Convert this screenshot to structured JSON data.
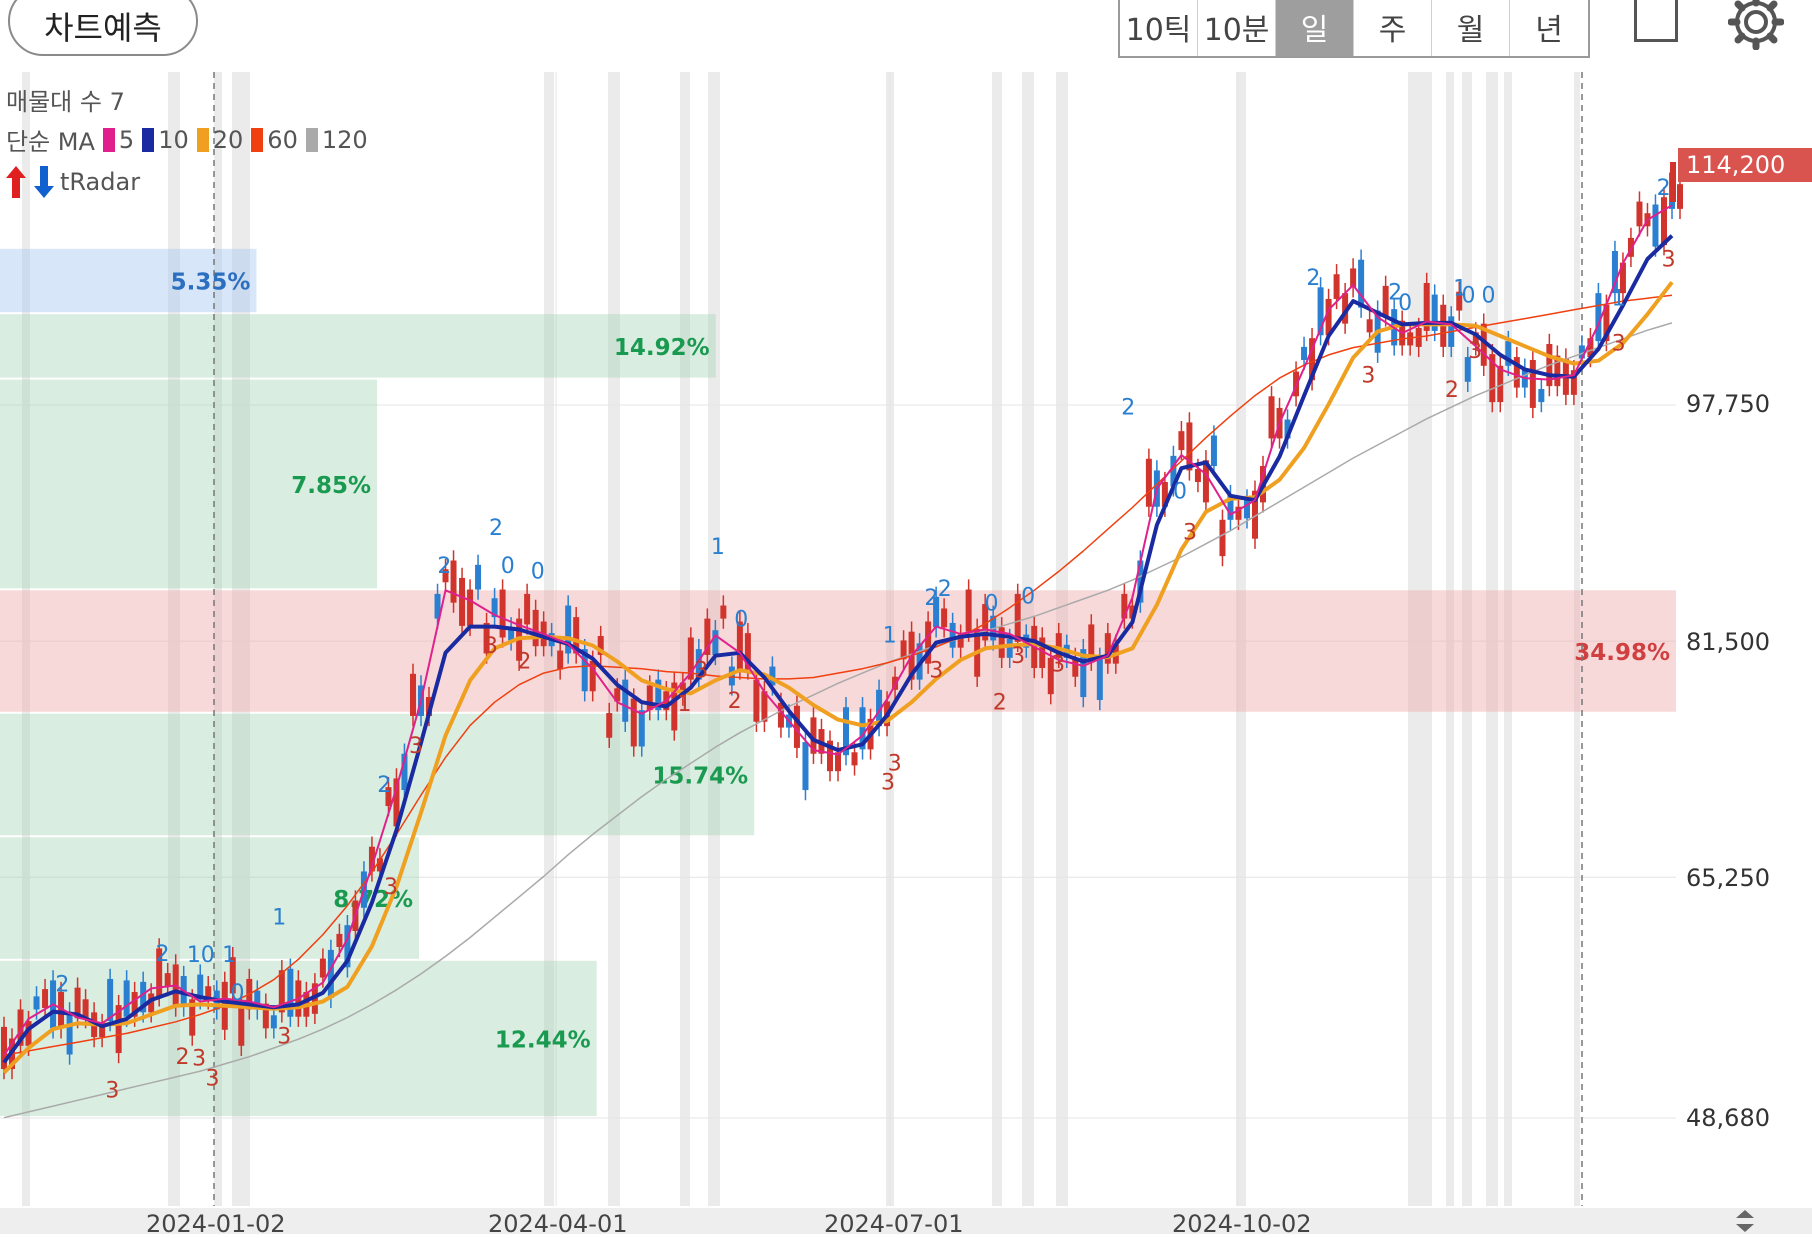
{
  "toolbar": {
    "forecast_label": "차트예측",
    "periods": [
      "10틱",
      "10분",
      "일",
      "주",
      "월",
      "년"
    ],
    "active_period": "일"
  },
  "legend": {
    "volume_profile": "매물대 수 7",
    "ma_title": "단순 MA",
    "ma_items": [
      {
        "period": "5",
        "color": "#e0208c"
      },
      {
        "period": "10",
        "color": "#1a2aa0"
      },
      {
        "period": "20",
        "color": "#f0a020"
      },
      {
        "period": "60",
        "color": "#f04010"
      },
      {
        "period": "120",
        "color": "#aaaaaa"
      }
    ],
    "radar_label": "tRadar"
  },
  "price_axis": {
    "labels": [
      "114,200",
      "97,750",
      "81,500",
      "65,250",
      "48,680"
    ],
    "last_price": "114,200",
    "last_price_color": "#d9534f"
  },
  "date_axis": {
    "labels": [
      "2024-01-02",
      "2024-04-01",
      "2024-07-01",
      "2024-10-02"
    ]
  },
  "volume_profile_zones": [
    {
      "pct": "5.35%",
      "range": [
        104000,
        108500
      ],
      "width_frac": 0.153,
      "color": "blue"
    },
    {
      "pct": "14.92%",
      "range": [
        99500,
        104000
      ],
      "width_frac": 0.427,
      "color": "green"
    },
    {
      "pct": "7.85%",
      "range": [
        85000,
        99500
      ],
      "width_frac": 0.225,
      "color": "green"
    },
    {
      "pct": "34.98%",
      "range": [
        76500,
        85000
      ],
      "width_frac": 1.0,
      "color": "red"
    },
    {
      "pct": "15.74%",
      "range": [
        68000,
        76500
      ],
      "width_frac": 0.45,
      "color": "green"
    },
    {
      "pct": "8.72%",
      "range": [
        59500,
        68000
      ],
      "width_frac": 0.25,
      "color": "green"
    },
    {
      "pct": "12.44%",
      "range": [
        48680,
        59500
      ],
      "width_frac": 0.356,
      "color": "green"
    }
  ],
  "signal_markers": [
    {
      "label": "2",
      "pos": 0.035,
      "price": 57400,
      "kind": "up"
    },
    {
      "label": "3",
      "pos": 0.065,
      "price": 50100,
      "kind": "down"
    },
    {
      "label": "2",
      "pos": 0.095,
      "price": 59500,
      "kind": "up"
    },
    {
      "label": "10",
      "pos": 0.118,
      "price": 59400,
      "kind": "up"
    },
    {
      "label": "1",
      "pos": 0.135,
      "price": 59400,
      "kind": "up"
    },
    {
      "label": "0",
      "pos": 0.14,
      "price": 56800,
      "kind": "up"
    },
    {
      "label": "2",
      "pos": 0.107,
      "price": 52400,
      "kind": "down"
    },
    {
      "label": "3",
      "pos": 0.117,
      "price": 52300,
      "kind": "down"
    },
    {
      "label": "3",
      "pos": 0.125,
      "price": 50900,
      "kind": "down"
    },
    {
      "label": "1",
      "pos": 0.165,
      "price": 62000,
      "kind": "up"
    },
    {
      "label": "3",
      "pos": 0.168,
      "price": 53800,
      "kind": "down"
    },
    {
      "label": "2",
      "pos": 0.228,
      "price": 71100,
      "kind": "up"
    },
    {
      "label": "3",
      "pos": 0.232,
      "price": 64100,
      "kind": "down"
    },
    {
      "label": "2",
      "pos": 0.264,
      "price": 86200,
      "kind": "up"
    },
    {
      "label": "3",
      "pos": 0.247,
      "price": 73800,
      "kind": "down"
    },
    {
      "label": "2",
      "pos": 0.295,
      "price": 88800,
      "kind": "up"
    },
    {
      "label": "0",
      "pos": 0.302,
      "price": 86200,
      "kind": "up"
    },
    {
      "label": "3",
      "pos": 0.292,
      "price": 80700,
      "kind": "down"
    },
    {
      "label": "2",
      "pos": 0.312,
      "price": 79600,
      "kind": "down"
    },
    {
      "label": "0",
      "pos": 0.32,
      "price": 85800,
      "kind": "up"
    },
    {
      "label": "1",
      "pos": 0.428,
      "price": 87500,
      "kind": "up"
    },
    {
      "label": "0",
      "pos": 0.442,
      "price": 82500,
      "kind": "up"
    },
    {
      "label": "3",
      "pos": 0.418,
      "price": 79000,
      "kind": "down"
    },
    {
      "label": "1",
      "pos": 0.408,
      "price": 76700,
      "kind": "down"
    },
    {
      "label": "2",
      "pos": 0.438,
      "price": 76900,
      "kind": "down"
    },
    {
      "label": "3",
      "pos": 0.53,
      "price": 71300,
      "kind": "down"
    },
    {
      "label": "3",
      "pos": 0.534,
      "price": 72600,
      "kind": "down"
    },
    {
      "label": "1",
      "pos": 0.531,
      "price": 81400,
      "kind": "up"
    },
    {
      "label": "2",
      "pos": 0.556,
      "price": 84000,
      "kind": "up"
    },
    {
      "label": "2",
      "pos": 0.564,
      "price": 84600,
      "kind": "up"
    },
    {
      "label": "3",
      "pos": 0.559,
      "price": 79000,
      "kind": "down"
    },
    {
      "label": "0",
      "pos": 0.592,
      "price": 83600,
      "kind": "up"
    },
    {
      "label": "0",
      "pos": 0.614,
      "price": 84100,
      "kind": "up"
    },
    {
      "label": "2",
      "pos": 0.597,
      "price": 76800,
      "kind": "down"
    },
    {
      "label": "3",
      "pos": 0.608,
      "price": 80000,
      "kind": "down"
    },
    {
      "label": "3",
      "pos": 0.632,
      "price": 79400,
      "kind": "down"
    },
    {
      "label": "2",
      "pos": 0.674,
      "price": 97100,
      "kind": "up"
    },
    {
      "label": "0",
      "pos": 0.705,
      "price": 91300,
      "kind": "up"
    },
    {
      "label": "3",
      "pos": 0.711,
      "price": 88500,
      "kind": "down"
    },
    {
      "label": "2",
      "pos": 0.785,
      "price": 106000,
      "kind": "up"
    },
    {
      "label": "3",
      "pos": 0.818,
      "price": 99300,
      "kind": "down"
    },
    {
      "label": "2",
      "pos": 0.834,
      "price": 105000,
      "kind": "up"
    },
    {
      "label": "0",
      "pos": 0.84,
      "price": 104300,
      "kind": "up"
    },
    {
      "label": "1",
      "pos": 0.873,
      "price": 105300,
      "kind": "up"
    },
    {
      "label": "0",
      "pos": 0.878,
      "price": 104800,
      "kind": "up"
    },
    {
      "label": "0",
      "pos": 0.89,
      "price": 104800,
      "kind": "up"
    },
    {
      "label": "2",
      "pos": 0.868,
      "price": 98300,
      "kind": "down"
    },
    {
      "label": "3",
      "pos": 0.882,
      "price": 101000,
      "kind": "down"
    },
    {
      "label": "1",
      "pos": 0.968,
      "price": 104600,
      "kind": "up"
    },
    {
      "label": "3",
      "pos": 0.968,
      "price": 101500,
      "kind": "down"
    },
    {
      "label": "2",
      "pos": 0.995,
      "price": 112200,
      "kind": "up"
    },
    {
      "label": "3",
      "pos": 0.998,
      "price": 107300,
      "kind": "down"
    }
  ],
  "chart_data": {
    "type": "line",
    "title": "",
    "xlabel": "",
    "ylabel": "",
    "x_ticks": [
      "2024-01-02",
      "2024-04-01",
      "2024-07-01",
      "2024-10-02"
    ],
    "ylim": [
      45000,
      118000
    ],
    "y_ticks": [
      48680,
      65250,
      81500,
      97750,
      114200
    ],
    "series": [
      {
        "name": "5",
        "color": "#e0208c",
        "values": [
          53000,
          55500,
          56500,
          55600,
          55200,
          56400,
          57600,
          57800,
          56700,
          56900,
          56700,
          56300,
          56900,
          58000,
          61000,
          66000,
          71400,
          77400,
          85000,
          84300,
          83300,
          82600,
          82000,
          81300,
          79600,
          77300,
          76500,
          77400,
          79300,
          81900,
          80700,
          78000,
          76000,
          74000,
          73700,
          75000,
          77500,
          80500,
          82500,
          82000,
          82300,
          82000,
          81100,
          80200,
          79800,
          80500,
          84500,
          92000,
          94300,
          93000,
          90200,
          91200,
          96500,
          100300,
          104300,
          106000,
          103800,
          102700,
          103500,
          103300,
          101800,
          100200,
          99600,
          99500,
          99800,
          103300,
          107500,
          110500,
          111500
        ]
      },
      {
        "name": "10",
        "color": "#1a2aa0",
        "values": [
          52500,
          54800,
          56000,
          55800,
          55000,
          55500,
          56800,
          57400,
          57000,
          56700,
          56500,
          56300,
          56500,
          57300,
          59500,
          63500,
          68500,
          74500,
          80700,
          82500,
          82500,
          82300,
          81800,
          81300,
          80300,
          78500,
          77300,
          77000,
          78300,
          80500,
          80700,
          79000,
          76700,
          74700,
          74000,
          74400,
          76400,
          79200,
          81400,
          81800,
          82000,
          81800,
          81500,
          80700,
          80100,
          80500,
          82800,
          89500,
          93400,
          93800,
          91500,
          91200,
          94200,
          98400,
          102500,
          104900,
          104100,
          103300,
          103400,
          103400,
          102600,
          101200,
          100200,
          99800,
          99700,
          101600,
          104600,
          107800,
          109400
        ]
      },
      {
        "name": "20",
        "color": "#f0a020",
        "values": [
          51800,
          53500,
          54800,
          55200,
          55100,
          55200,
          55800,
          56400,
          56500,
          56400,
          56300,
          56200,
          56300,
          56700,
          57700,
          60500,
          64600,
          69700,
          75000,
          78800,
          81000,
          81700,
          81800,
          81700,
          81200,
          80100,
          78800,
          78200,
          77900,
          78800,
          79500,
          79200,
          78300,
          77100,
          76100,
          75700,
          76000,
          77300,
          78900,
          80200,
          81000,
          81200,
          81300,
          81000,
          80500,
          80400,
          81000,
          84000,
          87800,
          90400,
          91300,
          91400,
          92600,
          94800,
          97800,
          101000,
          102800,
          103300,
          103300,
          103300,
          103200,
          102500,
          101800,
          101100,
          100600,
          100800,
          102000,
          104000,
          106200
        ]
      },
      {
        "name": "60",
        "color": "#f04010",
        "values": [
          53000,
          53300,
          53600,
          53900,
          54200,
          54500,
          54900,
          55300,
          55800,
          56400,
          57200,
          58200,
          59600,
          61300,
          63300,
          65600,
          68200,
          70900,
          73500,
          75700,
          77300,
          78500,
          79300,
          79700,
          79800,
          79700,
          79600,
          79400,
          79300,
          79100,
          79000,
          78900,
          78900,
          79000,
          79300,
          79600,
          80000,
          80500,
          81100,
          81800,
          82700,
          83800,
          85000,
          86300,
          87700,
          89200,
          90700,
          92300,
          93900,
          95500,
          97000,
          98400,
          99600,
          100500,
          101200,
          101700,
          102000,
          102300,
          102500,
          102800,
          103100,
          103400,
          103700,
          104000,
          104300,
          104600,
          104900,
          105100,
          105300
        ]
      },
      {
        "name": "120",
        "color": "#aaaaaa",
        "values": [
          48700,
          49100,
          49500,
          49900,
          50300,
          50700,
          51100,
          51500,
          51900,
          52400,
          52900,
          53500,
          54100,
          54800,
          55600,
          56500,
          57500,
          58600,
          59800,
          61100,
          62500,
          63900,
          65300,
          66800,
          68200,
          69500,
          70800,
          72000,
          73100,
          74200,
          75200,
          76100,
          77000,
          77800,
          78600,
          79300,
          80000,
          80600,
          81200,
          81700,
          82200,
          82700,
          83200,
          83800,
          84400,
          85000,
          85700,
          86500,
          87300,
          88200,
          89100,
          90100,
          91100,
          92100,
          93100,
          94100,
          95000,
          95900,
          96800,
          97600,
          98400,
          99100,
          99800,
          100500,
          101100,
          101700,
          102300,
          102900,
          103400
        ]
      }
    ]
  }
}
